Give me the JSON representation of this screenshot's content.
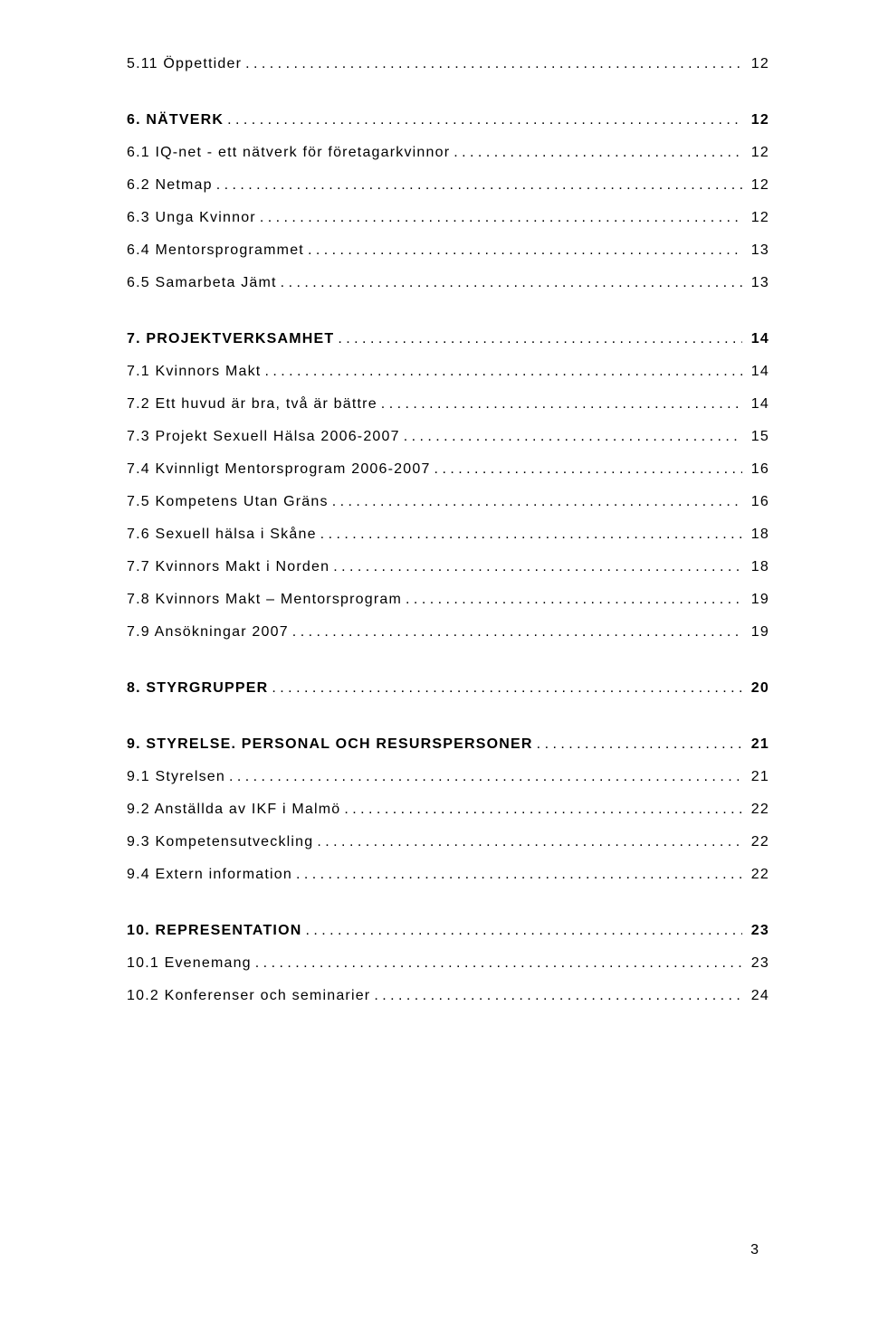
{
  "toc": [
    {
      "level": "h2",
      "first": true,
      "label": "5.11 Öppettider",
      "page": "12"
    },
    {
      "level": "h1",
      "label": "6. NÄTVERK",
      "page": "12"
    },
    {
      "level": "h2",
      "label": "6.1 IQ-net - ett nätverk för företagarkvinnor",
      "page": "12"
    },
    {
      "level": "h2",
      "label": "6.2 Netmap",
      "page": "12"
    },
    {
      "level": "h2",
      "label": "6.3 Unga Kvinnor",
      "page": "12"
    },
    {
      "level": "h2",
      "label": "6.4 Mentorsprogrammet",
      "page": "13"
    },
    {
      "level": "h2",
      "label": "6.5 Samarbeta Jämt",
      "page": "13"
    },
    {
      "level": "h1",
      "label": "7. PROJEKTVERKSAMHET",
      "page": "14"
    },
    {
      "level": "h2",
      "label": "7.1 Kvinnors Makt",
      "page": "14"
    },
    {
      "level": "h2",
      "label": "7.2 Ett huvud är bra, två är bättre",
      "page": "14"
    },
    {
      "level": "h2",
      "label": "7.3 Projekt Sexuell Hälsa 2006-2007",
      "page": "15"
    },
    {
      "level": "h2",
      "label": "7.4 Kvinnligt Mentorsprogram 2006-2007",
      "page": "16"
    },
    {
      "level": "h2",
      "label": "7.5 Kompetens Utan Gräns",
      "page": "16"
    },
    {
      "level": "h2",
      "label": "7.6 Sexuell hälsa i Skåne",
      "page": "18"
    },
    {
      "level": "h2",
      "label": "7.7 Kvinnors Makt i Norden",
      "page": "18"
    },
    {
      "level": "h2",
      "label": "7.8 Kvinnors Makt – Mentorsprogram",
      "page": "19"
    },
    {
      "level": "h2",
      "label": "7.9 Ansökningar 2007",
      "page": "19"
    },
    {
      "level": "h1",
      "label": "8. STYRGRUPPER",
      "page": "20"
    },
    {
      "level": "h1",
      "label": "9. STYRELSE. PERSONAL OCH RESURSPERSONER",
      "page": "21"
    },
    {
      "level": "h2",
      "label": "9.1 Styrelsen",
      "page": "21"
    },
    {
      "level": "h2",
      "label": "9.2 Anställda av IKF i Malmö",
      "page": "22"
    },
    {
      "level": "h2",
      "label": "9.3 Kompetensutveckling",
      "page": "22"
    },
    {
      "level": "h2",
      "label": "9.4 Extern information",
      "page": "22"
    },
    {
      "level": "h1",
      "label": "10. REPRESENTATION",
      "page": "23"
    },
    {
      "level": "h2",
      "label": "10.1 Evenemang",
      "page": "23"
    },
    {
      "level": "h2",
      "label": "10.2 Konferenser och seminarier",
      "page": "24"
    }
  ],
  "page_number": "3"
}
